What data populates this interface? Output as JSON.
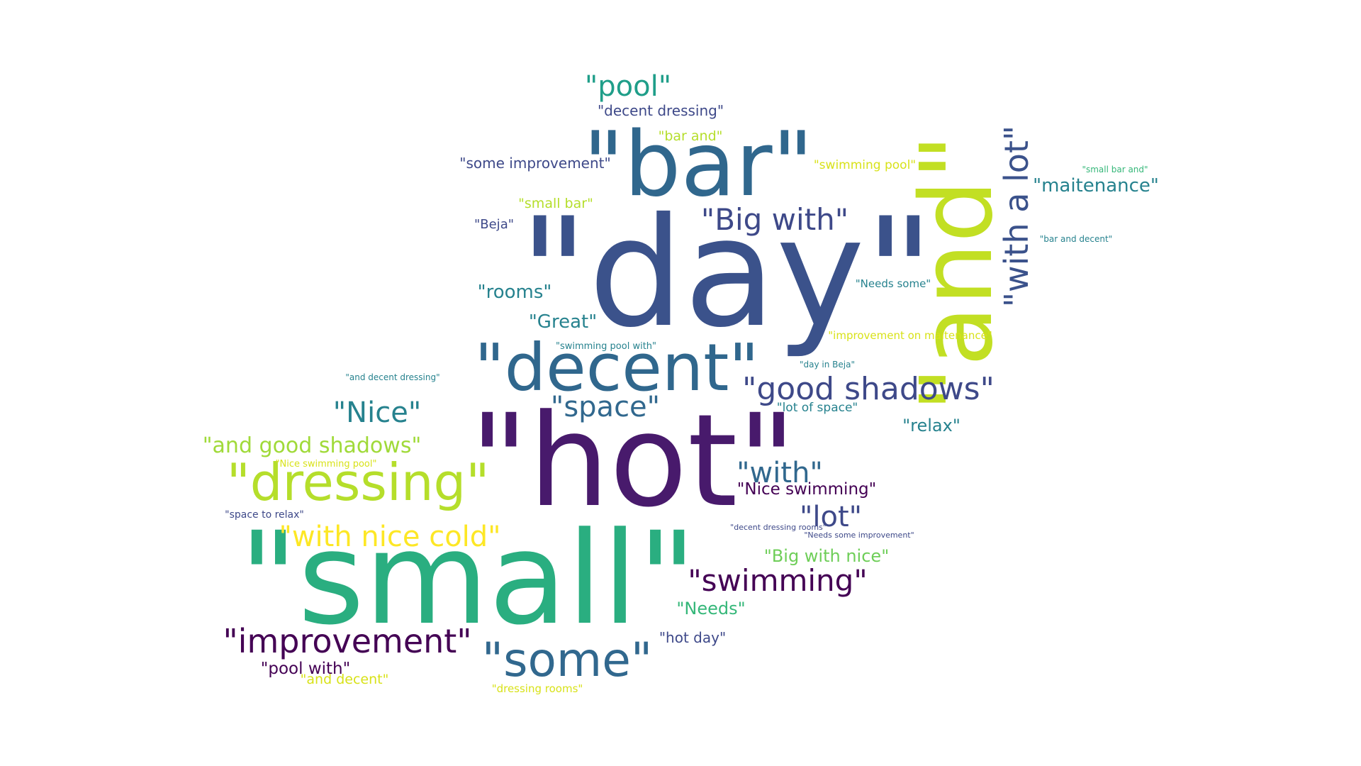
{
  "colors": {
    "background": "#ffffff",
    "palette": [
      "#440154",
      "#482878",
      "#3e4989",
      "#31688e",
      "#26828e",
      "#1f9e89",
      "#35b779",
      "#6ece58",
      "#b5de2b",
      "#fde725"
    ]
  },
  "words": [
    {
      "text": "\"day\"",
      "color": "#3b528b"
    },
    {
      "text": "\"hot\"",
      "color": "#481a6c"
    },
    {
      "text": "\"small\"",
      "color": "#2aae80"
    },
    {
      "text": "\"bar\"",
      "color": "#30678d"
    },
    {
      "text": "\"and\"",
      "color": "#c2df23"
    },
    {
      "text": "\"decent\"",
      "color": "#30678d"
    },
    {
      "text": "\"dressing\"",
      "color": "#b5de2b"
    },
    {
      "text": "\"with a lot\"",
      "color": "#3b528b"
    },
    {
      "text": "\"some\"",
      "color": "#31688e"
    },
    {
      "text": "\"improvement\"",
      "color": "#440154"
    },
    {
      "text": "\"good shadows\"",
      "color": "#3e4989"
    },
    {
      "text": "\"swimming\"",
      "color": "#440154"
    },
    {
      "text": "\"Big with\"",
      "color": "#3e4989"
    },
    {
      "text": "\"with nice cold\"",
      "color": "#fde725"
    },
    {
      "text": "\"pool\"",
      "color": "#1f9e89"
    },
    {
      "text": "\"Nice\"",
      "color": "#26828e"
    },
    {
      "text": "\"space\"",
      "color": "#31688e"
    },
    {
      "text": "\"with\"",
      "color": "#31688e"
    },
    {
      "text": "\"lot\"",
      "color": "#3e4989"
    },
    {
      "text": "\"and good shadows\"",
      "color": "#a0da39"
    },
    {
      "text": "\"maitenance\"",
      "color": "#26828e"
    },
    {
      "text": "\"rooms\"",
      "color": "#26828e"
    },
    {
      "text": "\"Great\"",
      "color": "#26828e"
    },
    {
      "text": "\"relax\"",
      "color": "#26828e"
    },
    {
      "text": "\"Big with nice\"",
      "color": "#6ece58"
    },
    {
      "text": "\"Needs\"",
      "color": "#35b779"
    },
    {
      "text": "\"Nice swimming\"",
      "color": "#440154"
    },
    {
      "text": "\"pool with\"",
      "color": "#440154"
    },
    {
      "text": "\"hot day\"",
      "color": "#3e4989"
    },
    {
      "text": "\"decent dressing\"",
      "color": "#3e4989"
    },
    {
      "text": "\"some improvement\"",
      "color": "#3e4989"
    },
    {
      "text": "\"bar and\"",
      "color": "#b5de2b"
    },
    {
      "text": "\"small bar\"",
      "color": "#b5de2b"
    },
    {
      "text": "\"swimming pool\"",
      "color": "#d8e219"
    },
    {
      "text": "\"and decent\"",
      "color": "#d8e219"
    },
    {
      "text": "\"Beja\"",
      "color": "#3e4989"
    },
    {
      "text": "\"lot of space\"",
      "color": "#26828e"
    },
    {
      "text": "\"Needs some\"",
      "color": "#26828e"
    },
    {
      "text": "\"improvement on maitenance\"",
      "color": "#d8e219"
    },
    {
      "text": "\"dressing rooms\"",
      "color": "#d8e219"
    },
    {
      "text": "\"space to relax\"",
      "color": "#3e4989"
    },
    {
      "text": "\"swimming pool with\"",
      "color": "#26828e"
    },
    {
      "text": "\"day in Beja\"",
      "color": "#26828e"
    },
    {
      "text": "\"and decent dressing\"",
      "color": "#26828e"
    },
    {
      "text": "\"Nice swimming pool\"",
      "color": "#d8e219"
    },
    {
      "text": "\"small bar and\"",
      "color": "#35b779"
    },
    {
      "text": "\"bar and decent\"",
      "color": "#26828e"
    },
    {
      "text": "\"decent dressing rooms\"",
      "color": "#3e4989"
    },
    {
      "text": "\"Needs some improvement\"",
      "color": "#3e4989"
    }
  ]
}
